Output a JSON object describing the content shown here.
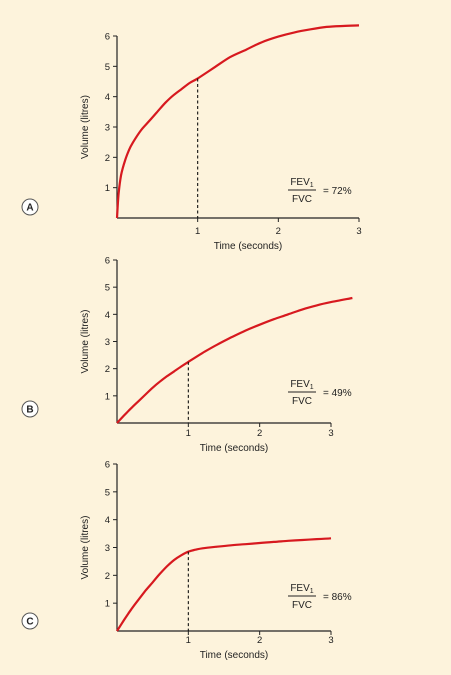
{
  "style": {
    "background": "#fdf3dc",
    "curve_color": "#d7191f"
  },
  "chart_data": [
    {
      "panel_label": "A",
      "type": "line",
      "xlabel": "Time (seconds)",
      "ylabel": "Volume (litres)",
      "xlim": [
        0,
        3
      ],
      "ylim": [
        0,
        6
      ],
      "xticks": [
        "1",
        "2",
        "3"
      ],
      "yticks": [
        "1",
        "2",
        "3",
        "4",
        "5",
        "6"
      ],
      "guide_at_x": 1,
      "ratio": {
        "numerator": "FEV",
        "subscript": "1",
        "denominator": "FVC",
        "value": "= 72%"
      },
      "series": [
        {
          "x": [
            0,
            0.02,
            0.05,
            0.1,
            0.15,
            0.2,
            0.3,
            0.4,
            0.5,
            0.6,
            0.7,
            0.8,
            0.9,
            1.0,
            1.2,
            1.4,
            1.6,
            1.8,
            2.0,
            2.2,
            2.4,
            2.6,
            2.8,
            3.0
          ],
          "y": [
            0,
            0.8,
            1.4,
            1.9,
            2.25,
            2.5,
            2.9,
            3.2,
            3.5,
            3.8,
            4.05,
            4.25,
            4.45,
            4.6,
            4.95,
            5.3,
            5.55,
            5.8,
            5.98,
            6.12,
            6.22,
            6.3,
            6.33,
            6.35
          ]
        }
      ]
    },
    {
      "panel_label": "B",
      "type": "line",
      "xlabel": "Time (seconds)",
      "ylabel": "Volume (litres)",
      "xlim": [
        0,
        3
      ],
      "ylim": [
        0,
        6
      ],
      "xticks": [
        "1",
        "2",
        "3"
      ],
      "yticks": [
        "1",
        "2",
        "3",
        "4",
        "5",
        "6"
      ],
      "guide_at_x": 1,
      "ratio": {
        "numerator": "FEV",
        "subscript": "1",
        "denominator": "FVC",
        "value": "= 49%"
      },
      "series": [
        {
          "x": [
            0,
            0.1,
            0.2,
            0.3,
            0.4,
            0.5,
            0.6,
            0.7,
            0.8,
            0.9,
            1.0,
            1.2,
            1.4,
            1.6,
            1.8,
            2.0,
            2.2,
            2.4,
            2.6,
            2.8,
            3.0,
            3.3
          ],
          "y": [
            0,
            0.28,
            0.55,
            0.8,
            1.05,
            1.3,
            1.52,
            1.72,
            1.9,
            2.08,
            2.25,
            2.58,
            2.88,
            3.15,
            3.4,
            3.62,
            3.82,
            4.0,
            4.18,
            4.33,
            4.45,
            4.6
          ]
        }
      ]
    },
    {
      "panel_label": "C",
      "type": "line",
      "xlabel": "Time (seconds)",
      "ylabel": "Volume (litres)",
      "xlim": [
        0,
        3
      ],
      "ylim": [
        0,
        6
      ],
      "xticks": [
        "1",
        "2",
        "3"
      ],
      "yticks": [
        "1",
        "2",
        "3",
        "4",
        "5",
        "6"
      ],
      "guide_at_x": 1,
      "ratio": {
        "numerator": "FEV",
        "subscript": "1",
        "denominator": "FVC",
        "value": "= 86%"
      },
      "series": [
        {
          "x": [
            0,
            0.1,
            0.2,
            0.3,
            0.4,
            0.5,
            0.6,
            0.7,
            0.8,
            0.9,
            1.0,
            1.1,
            1.2,
            1.4,
            1.6,
            1.8,
            2.0,
            2.2,
            2.4,
            2.6,
            2.8,
            3.0
          ],
          "y": [
            0,
            0.4,
            0.78,
            1.12,
            1.45,
            1.75,
            2.05,
            2.32,
            2.55,
            2.72,
            2.85,
            2.92,
            2.97,
            3.03,
            3.08,
            3.12,
            3.16,
            3.2,
            3.24,
            3.27,
            3.3,
            3.33
          ]
        }
      ]
    }
  ]
}
